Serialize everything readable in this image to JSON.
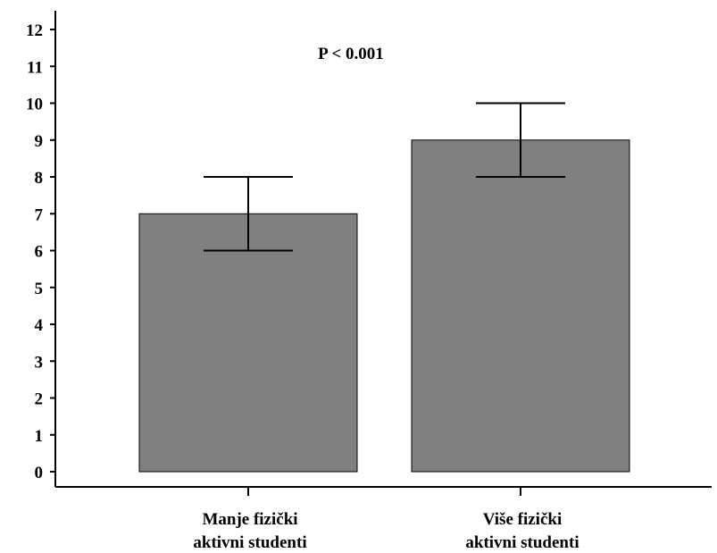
{
  "chart_data": {
    "type": "bar",
    "categories": [
      [
        "Manje fizički",
        "aktivni studenti"
      ],
      [
        "Više fizički",
        "aktivni studenti"
      ]
    ],
    "values": [
      7,
      9
    ],
    "error_low": [
      6,
      8
    ],
    "error_high": [
      8,
      10
    ],
    "ylim": [
      0,
      12
    ],
    "yticks": [
      "0",
      "1",
      "2",
      "3",
      "4",
      "5",
      "6",
      "7",
      "8",
      "9",
      "10",
      "11",
      "12"
    ],
    "annotation": "P < 0.001",
    "title": "",
    "xlabel": "",
    "ylabel": "",
    "grid": false,
    "colors": {
      "bar": "#808080",
      "edge": "#000000",
      "axis": "#000000"
    }
  }
}
